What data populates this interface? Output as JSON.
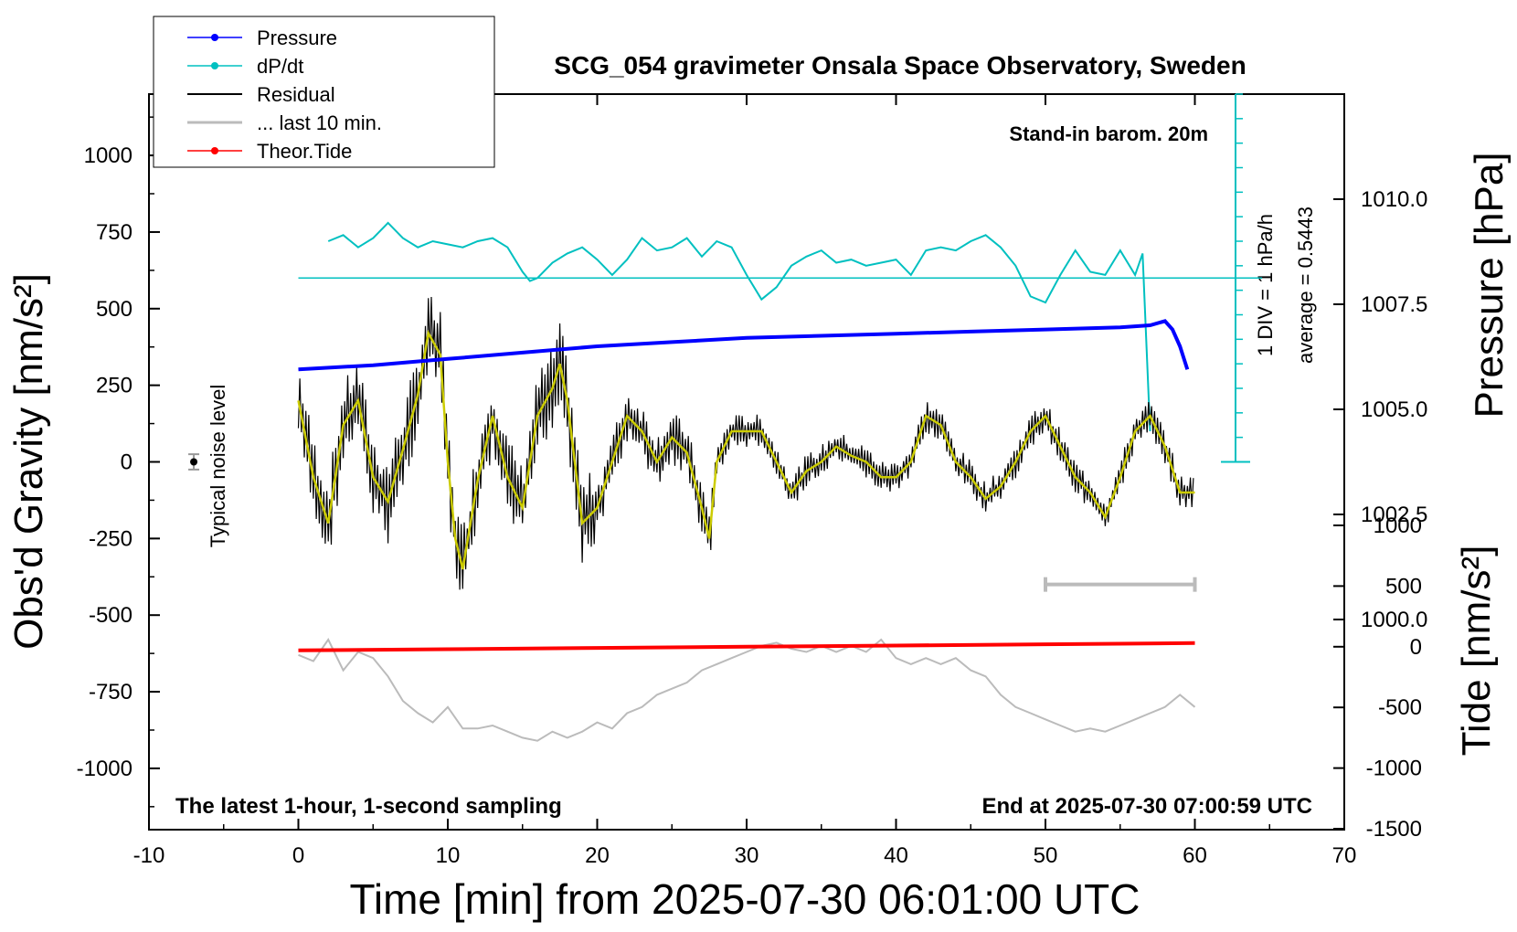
{
  "chart_data": {
    "type": "line",
    "title": "SCG_054 gravimeter Onsala Space Observatory, Sweden",
    "xlabel": "Time [min] from 2025-07-30 06:01:00 UTC",
    "ylabel_left": "Obs'd Gravity [nm/s²]",
    "ylabel_right_pressure": "Pressure [hPa]",
    "ylabel_right_tide": "Tide [nm/s²]",
    "xlim": [
      -10,
      70
    ],
    "ylim_gravity": [
      -1200,
      1200
    ],
    "ylim_pressure": [
      995.0,
      1012.5
    ],
    "ylim_tide": [
      -1500,
      1500
    ],
    "x_ticks": [
      "-10",
      "0",
      "10",
      "20",
      "30",
      "40",
      "50",
      "60",
      "70"
    ],
    "gravity_ticks": [
      "1000",
      "750",
      "500",
      "250",
      "0",
      "-250",
      "-500",
      "-750",
      "-1000"
    ],
    "pressure_ticks": [
      "1010.0",
      "1007.5",
      "1005.0",
      "1002.5",
      "1000.0"
    ],
    "tide_ticks": [
      "1000",
      "500",
      "0",
      "-500",
      "-1000",
      "-1500"
    ],
    "legend": {
      "placement": "top-left",
      "entries": [
        {
          "label": "Pressure",
          "color": "#0000ff",
          "marker": true
        },
        {
          "label": "dP/dt",
          "color": "#00c0c0",
          "marker": true
        },
        {
          "label": "Residual",
          "color": "#000000",
          "marker": false
        },
        {
          "label": "... last 10 min.",
          "color": "#bbbbbb",
          "marker": false
        },
        {
          "label": "Theor.Tide",
          "color": "#ff0000",
          "marker": true
        }
      ]
    },
    "annotations": {
      "barometer": "Stand-in barom. 20m",
      "div_scale": "1 DIV = 1 hPa/h",
      "average": "average = 0.5443",
      "noise": "Typical noise level",
      "latest": "The latest 1-hour, 1-second sampling",
      "end": "End at 2025-07-30 07:00:59 UTC"
    },
    "series": [
      {
        "name": "Pressure",
        "color": "#0000ff",
        "axis": "pressure",
        "x": [
          0,
          5,
          10,
          15,
          20,
          25,
          30,
          35,
          40,
          45,
          50,
          55,
          57,
          58,
          58.5,
          59,
          59.5
        ],
        "y": [
          1005.95,
          1006.05,
          1006.2,
          1006.35,
          1006.5,
          1006.6,
          1006.7,
          1006.75,
          1006.8,
          1006.85,
          1006.9,
          1006.95,
          1007.0,
          1007.1,
          1006.9,
          1006.5,
          1005.95
        ]
      },
      {
        "name": "dP/dt",
        "color": "#00c0c0",
        "axis": "gravity",
        "x": [
          2,
          3,
          4,
          5,
          6,
          7,
          8,
          9,
          10,
          11,
          12,
          13,
          14,
          15,
          15.5,
          16,
          17,
          18,
          19,
          20,
          21,
          22,
          23,
          24,
          25,
          26,
          27,
          28,
          29,
          30,
          31,
          32,
          33,
          34,
          35,
          36,
          37,
          38,
          39,
          40,
          41,
          42,
          43,
          44,
          45,
          46,
          47,
          48,
          49,
          50,
          51,
          52,
          53,
          54,
          55,
          56,
          56.5,
          57
        ],
        "y": [
          720,
          740,
          700,
          730,
          780,
          730,
          700,
          720,
          710,
          700,
          720,
          730,
          700,
          620,
          590,
          600,
          650,
          680,
          700,
          660,
          610,
          660,
          730,
          690,
          700,
          730,
          670,
          720,
          700,
          610,
          530,
          570,
          640,
          670,
          690,
          650,
          660,
          640,
          650,
          660,
          610,
          690,
          700,
          690,
          720,
          740,
          700,
          640,
          540,
          520,
          610,
          690,
          620,
          610,
          690,
          610,
          680,
          100
        ]
      },
      {
        "name": "Residual (smoothed)",
        "color": "#cccc00",
        "axis": "gravity",
        "x": [
          0,
          1,
          2,
          3,
          4,
          5,
          6,
          7,
          8,
          8.7,
          9.5,
          10,
          10.5,
          11,
          12,
          13,
          14,
          15,
          16,
          17,
          17.5,
          18,
          19,
          20,
          21,
          22,
          23,
          24,
          25,
          26,
          27,
          27.5,
          28,
          29,
          30,
          31,
          32,
          33,
          34,
          35,
          36,
          37,
          38,
          39,
          40,
          41,
          42,
          43,
          44,
          45,
          46,
          47,
          48,
          49,
          50,
          51,
          52,
          53,
          54,
          55,
          56,
          57,
          58,
          59,
          60
        ],
        "y": [
          200,
          -50,
          -200,
          120,
          200,
          -50,
          -130,
          40,
          220,
          420,
          350,
          0,
          -250,
          -350,
          -60,
          150,
          -50,
          -150,
          150,
          240,
          320,
          200,
          -200,
          -150,
          0,
          150,
          100,
          0,
          80,
          30,
          -150,
          -250,
          0,
          100,
          100,
          100,
          0,
          -100,
          -30,
          0,
          50,
          20,
          0,
          -50,
          -50,
          0,
          150,
          120,
          0,
          -50,
          -120,
          -80,
          0,
          100,
          150,
          50,
          -50,
          -100,
          -180,
          -50,
          100,
          150,
          50,
          -100,
          -100
        ]
      },
      {
        "name": "... last 10 min.",
        "color": "#bbbbbb",
        "axis": "gravity",
        "x": [
          0,
          1,
          2,
          3,
          4,
          5,
          6,
          7,
          8,
          9,
          10,
          11,
          12,
          13,
          14,
          15,
          16,
          17,
          18,
          19,
          20,
          21,
          22,
          23,
          24,
          25,
          26,
          27,
          28,
          29,
          30,
          31,
          32,
          33,
          34,
          35,
          36,
          37,
          38,
          39,
          40,
          41,
          42,
          43,
          44,
          45,
          46,
          47,
          48,
          49,
          50,
          51,
          52,
          53,
          54,
          55,
          56,
          57,
          58,
          59,
          60
        ],
        "y": [
          -630,
          -650,
          -580,
          -680,
          -620,
          -640,
          -700,
          -780,
          -820,
          -850,
          -800,
          -870,
          -870,
          -860,
          -880,
          -900,
          -910,
          -880,
          -900,
          -880,
          -850,
          -870,
          -820,
          -800,
          -760,
          -740,
          -720,
          -680,
          -660,
          -640,
          -620,
          -600,
          -590,
          -610,
          -620,
          -600,
          -620,
          -600,
          -620,
          -580,
          -640,
          -660,
          -640,
          -660,
          -640,
          -680,
          -700,
          -760,
          -800,
          -820,
          -840,
          -860,
          -880,
          -870,
          -880,
          -860,
          -840,
          -820,
          -800,
          -760,
          -800
        ]
      },
      {
        "name": "Theor.Tide",
        "color": "#ff0000",
        "axis": "tide",
        "x": [
          0,
          10,
          20,
          30,
          40,
          50,
          60
        ],
        "y": [
          -30,
          -20,
          -10,
          0,
          10,
          20,
          30
        ]
      }
    ],
    "window_bar": {
      "x": [
        50,
        60
      ],
      "y": -400,
      "color": "#bbbbbb"
    },
    "noise_bar": {
      "x": -7,
      "y": 0,
      "err": 25
    }
  }
}
